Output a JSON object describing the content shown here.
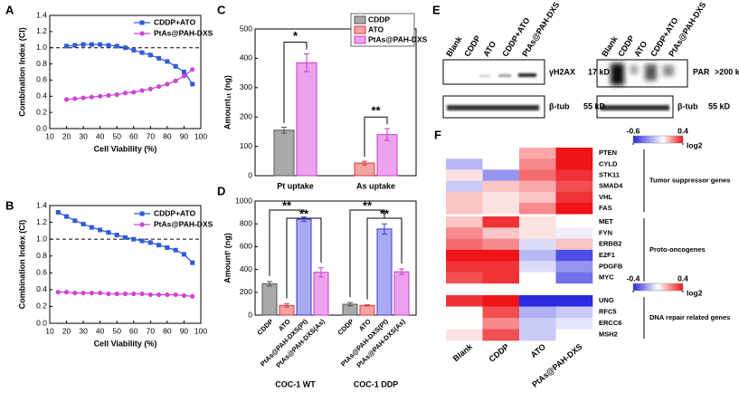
{
  "chart_data": [
    {
      "type": "line",
      "panel_label": "A",
      "xlabel": "Cell Viability (%)",
      "ylabel": "Combination Index (CI)",
      "x": [
        20,
        25,
        30,
        35,
        40,
        45,
        50,
        55,
        60,
        65,
        70,
        75,
        80,
        85,
        90,
        95
      ],
      "xlim": [
        10,
        100
      ],
      "xticks": [
        10,
        20,
        30,
        40,
        50,
        60,
        70,
        80,
        90,
        100
      ],
      "ylim": [
        0,
        1.4
      ],
      "yticks": [
        {
          "value": 0,
          "label": "0.0"
        },
        0.2,
        0.4,
        0.6,
        0.8,
        {
          "value": 1,
          "label": "1.0"
        },
        1.2,
        1.4
      ],
      "reference_line": 1,
      "legend": "upper right",
      "series": [
        {
          "name": "CDDP+ATO",
          "color": "#2f5bd6",
          "marker": "square",
          "values": [
            1.02,
            1.03,
            1.04,
            1.04,
            1.04,
            1.03,
            1.02,
            1.0,
            0.97,
            0.94,
            0.91,
            0.87,
            0.83,
            0.77,
            0.7,
            0.55
          ]
        },
        {
          "name": "PtAs@PAH-DXS",
          "color": "#cf45d2",
          "marker": "circle",
          "values": [
            0.36,
            0.37,
            0.38,
            0.39,
            0.4,
            0.41,
            0.42,
            0.44,
            0.45,
            0.47,
            0.49,
            0.52,
            0.55,
            0.59,
            0.65,
            0.73
          ]
        }
      ]
    },
    {
      "type": "line",
      "panel_label": "B",
      "xlabel": "Cell Viability (%)",
      "ylabel": "Combination Index (CI)",
      "x": [
        15,
        20,
        25,
        30,
        35,
        40,
        45,
        50,
        55,
        60,
        65,
        70,
        75,
        80,
        85,
        90,
        95
      ],
      "xlim": [
        10,
        100
      ],
      "xticks": [
        10,
        20,
        30,
        40,
        50,
        60,
        70,
        80,
        90,
        100
      ],
      "ylim": [
        0,
        1.4
      ],
      "yticks": [
        {
          "value": 0,
          "label": "0.0"
        },
        0.2,
        0.4,
        0.6,
        0.8,
        {
          "value": 1,
          "label": "1.0"
        },
        1.2,
        1.4
      ],
      "reference_line": 1,
      "legend": "upper right",
      "series": [
        {
          "name": "CDDP+ATO",
          "color": "#2f5bd6",
          "marker": "square",
          "values": [
            1.32,
            1.27,
            1.22,
            1.18,
            1.14,
            1.11,
            1.08,
            1.05,
            1.02,
            1.0,
            0.98,
            0.96,
            0.93,
            0.9,
            0.87,
            0.82,
            0.72
          ]
        },
        {
          "name": "PtAs@PAH-DXS",
          "color": "#cf45d2",
          "marker": "circle",
          "values": [
            0.37,
            0.37,
            0.36,
            0.36,
            0.36,
            0.36,
            0.35,
            0.35,
            0.35,
            0.35,
            0.35,
            0.34,
            0.34,
            0.34,
            0.34,
            0.33,
            0.32
          ]
        }
      ]
    },
    {
      "type": "bar",
      "panel_label": "C",
      "ylabel": "Amount₁ₜ (ng)",
      "categories": [
        "Pt uptake",
        "As uptake"
      ],
      "ylim": [
        0,
        500
      ],
      "yticks": [
        0,
        100,
        200,
        300,
        400,
        500
      ],
      "legend": "upper right",
      "series": [
        {
          "name": "CDDP",
          "color": "#a9a9a9",
          "edge": "#555555",
          "values": [
            155,
            null
          ],
          "errors": [
            10,
            null
          ]
        },
        {
          "name": "ATO",
          "color": "#f4a3a3",
          "edge": "#d23b3b",
          "values": [
            null,
            43
          ],
          "errors": [
            null,
            6
          ]
        },
        {
          "name": "PtAs@PAH-DXS",
          "color": "#eda2ee",
          "edge": "#c33fc6",
          "values": [
            385,
            140
          ],
          "errors": [
            30,
            20
          ]
        }
      ],
      "annotations": [
        "*",
        "**"
      ]
    },
    {
      "type": "grouped_bar",
      "panel_label": "D",
      "ylabel": "Amountᵗ (ng)",
      "groups": [
        "COC-1 WT",
        "COC-1 DDP"
      ],
      "categories": [
        "CDDP",
        "ATO",
        "PtAs@PAH-DXS(Pt)",
        "PtAs@PAH-DXS(As)"
      ],
      "colors": [
        "#a9a9a9",
        "#f4a3a3",
        "#aaaaf2",
        "#eda2ee"
      ],
      "edgecolors": [
        "#555555",
        "#d23b3b",
        "#3b3bd2",
        "#c33fc6"
      ],
      "values": [
        [
          275,
          85,
          840,
          375
        ],
        [
          95,
          85,
          755,
          380
        ]
      ],
      "errors": [
        [
          20,
          15,
          20,
          40
        ],
        [
          15,
          5,
          45,
          25
        ]
      ],
      "ylim": [
        0,
        1000
      ],
      "yticks": [
        0,
        200,
        400,
        600,
        800,
        1000
      ],
      "annotations": [
        "**",
        "**",
        "**",
        "**"
      ]
    },
    {
      "type": "heatmap",
      "panel_label": "F",
      "columns": [
        "Blank",
        "CDDP",
        "ATO",
        "PtAs@PAH-DXS"
      ],
      "colors": {
        "low": "#2a2ae0",
        "mid": "#ffffff",
        "high": "#ee1418"
      },
      "groups": [
        {
          "label": "Tumor suppressor genes",
          "colorbar": {
            "clim": [
              -0.6,
              0.4
            ],
            "ticks": [
              -0.6,
              0.4
            ],
            "label": "log2"
          },
          "rows": [
            "PTEN",
            "CYLD",
            "STK11",
            "SMAD4",
            "VHL",
            "FAS"
          ],
          "values": [
            [
              0.0,
              0.0,
              0.15,
              0.4
            ],
            [
              -0.2,
              0.0,
              0.2,
              0.4
            ],
            [
              0.05,
              -0.3,
              0.25,
              0.35
            ],
            [
              -0.15,
              0.1,
              0.15,
              0.3
            ],
            [
              0.1,
              0.05,
              0.1,
              0.35
            ],
            [
              0.1,
              0.05,
              0.2,
              0.4
            ]
          ]
        },
        {
          "label": "Proto-oncogenes",
          "rows": [
            "MET",
            "FYN",
            "ERBB2",
            "E2F1",
            "PDGFB",
            "MYC"
          ],
          "values": [
            [
              0.1,
              0.35,
              0.05,
              0.0
            ],
            [
              0.2,
              0.1,
              0.05,
              -0.05
            ],
            [
              0.25,
              0.2,
              -0.1,
              0.1
            ],
            [
              0.4,
              0.4,
              -0.2,
              -0.5
            ],
            [
              0.35,
              0.35,
              -0.1,
              -0.3
            ],
            [
              0.3,
              0.35,
              0.0,
              -0.4
            ]
          ]
        },
        {
          "label": "DNA repair related genes",
          "colorbar": {
            "clim": [
              -0.4,
              0.4
            ],
            "ticks": [
              -0.4,
              0.4
            ],
            "label": "log2"
          },
          "rows": [
            "UNG",
            "RFC5",
            "ERCC6",
            "MSH2"
          ],
          "values": [
            [
              0.35,
              0.4,
              -0.4,
              -0.4
            ],
            [
              0.0,
              0.3,
              -0.15,
              -0.1
            ],
            [
              0.0,
              0.2,
              -0.1,
              -0.05
            ],
            [
              0.05,
              0.3,
              -0.1,
              0.0
            ]
          ]
        }
      ]
    }
  ],
  "blot": {
    "panel_label": "E",
    "lanes": [
      "Blank",
      "CDDP",
      "ATO",
      "CDDP+ATO",
      "PtAs@PAH-DXS"
    ],
    "left": {
      "target": "γH2AX",
      "target_size": "17 kD",
      "loading": "β-tub",
      "loading_size": "55 kD"
    },
    "right": {
      "target": "PAR",
      "target_size": ">200 kD",
      "loading": "β-tub",
      "loading_size": "55 kD"
    }
  }
}
